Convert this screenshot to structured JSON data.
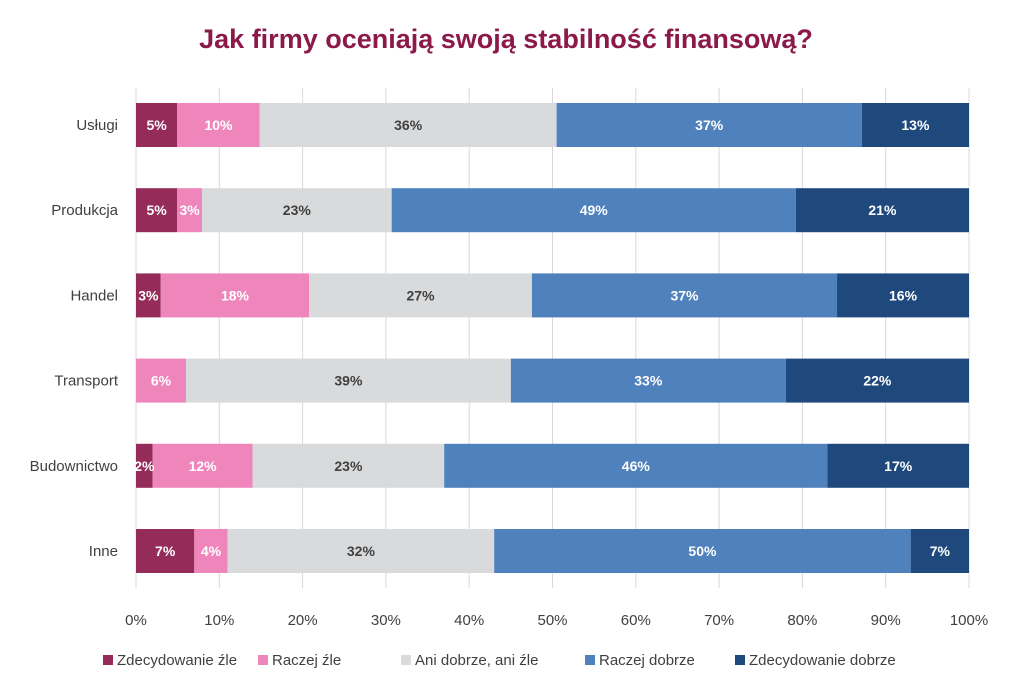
{
  "chart_data": {
    "type": "bar",
    "orientation": "horizontal",
    "stacked": true,
    "normalized": true,
    "title": "Jak firmy oceniają swoją stabilność finansową?",
    "title_color": "#8B1A4A",
    "xlabel": "",
    "ylabel": "",
    "xlim": [
      0,
      100
    ],
    "x_ticks": [
      0,
      10,
      20,
      30,
      40,
      50,
      60,
      70,
      80,
      90,
      100
    ],
    "x_tick_labels": [
      "0%",
      "10%",
      "20%",
      "30%",
      "40%",
      "50%",
      "60%",
      "70%",
      "80%",
      "90%",
      "100%"
    ],
    "grid": true,
    "legend_position": "bottom",
    "categories": [
      "Usługi",
      "Produkcja",
      "Handel",
      "Transport",
      "Budownictwo",
      "Inne"
    ],
    "series": [
      {
        "name": "Zdecydowanie źle",
        "color": "#942B59",
        "label_color": "#ffffff",
        "values": [
          5,
          5,
          3,
          0,
          2,
          7
        ],
        "labels": [
          "5%",
          "5%",
          "3%",
          "",
          "2%",
          "7%"
        ]
      },
      {
        "name": "Raczej źle",
        "color": "#EE86BC",
        "label_color": "#ffffff",
        "values": [
          10,
          3,
          18,
          6,
          12,
          4
        ],
        "labels": [
          "10%",
          "3%",
          "18%",
          "6%",
          "12%",
          "4%"
        ]
      },
      {
        "name": "Ani dobrze, ani źle",
        "color": "#D9DADB",
        "label_color": "#404040",
        "values": [
          36,
          23,
          27,
          39,
          23,
          32
        ],
        "labels": [
          "36%",
          "23%",
          "27%",
          "39%",
          "23%",
          "32%"
        ]
      },
      {
        "name": "Raczej dobrze",
        "color": "#4F81BD",
        "label_color": "#ffffff",
        "values": [
          37,
          49,
          37,
          33,
          46,
          50
        ],
        "labels": [
          "37%",
          "49%",
          "37%",
          "33%",
          "46%",
          "50%"
        ]
      },
      {
        "name": "Zdecydowanie dobrze",
        "color": "#1F497D",
        "label_color": "#ffffff",
        "values": [
          13,
          21,
          16,
          22,
          17,
          7
        ],
        "labels": [
          "13%",
          "21%",
          "16%",
          "22%",
          "17%",
          "7%"
        ]
      }
    ]
  }
}
